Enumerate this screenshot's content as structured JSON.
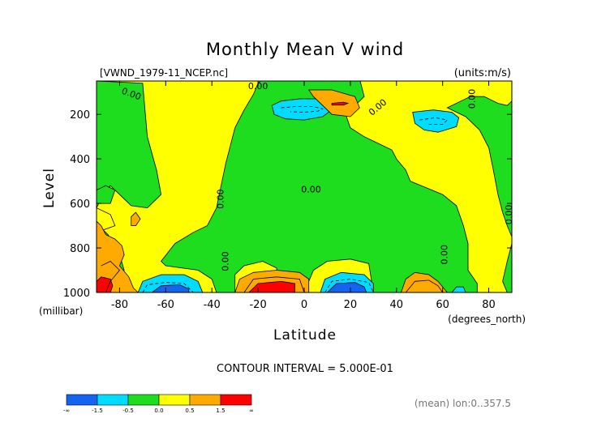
{
  "chart_data": {
    "type": "heatmap",
    "title": "Monthly Mean V wind",
    "file_label": "[VWND_1979-11_NCEP.nc]",
    "units_label": "(units:m/s)",
    "xlabel": "Latitude",
    "x_units": "(degrees_north)",
    "ylabel": "Level",
    "y_units": "(millibar)",
    "xlim": [
      -90,
      90
    ],
    "ylim": [
      1000,
      50
    ],
    "x_ticks": [
      -80,
      -60,
      -40,
      -20,
      0,
      20,
      40,
      60,
      80
    ],
    "y_ticks": [
      200,
      400,
      600,
      800,
      1000
    ],
    "grid": false,
    "contour_interval_text": "CONTOUR INTERVAL = 5.000E-01",
    "mean_text": "(mean) lon:0..357.5",
    "contour_labels": [
      {
        "text": "0.00",
        "x": -75,
        "y": 110,
        "rotate": 20
      },
      {
        "text": "0.00",
        "x": -20,
        "y": 75,
        "rotate": 0
      },
      {
        "text": "0.00",
        "x": 32,
        "y": 170,
        "rotate": -40
      },
      {
        "text": "0.00",
        "x": 73,
        "y": 130,
        "rotate": -90
      },
      {
        "text": "0.00",
        "x": -36,
        "y": 580,
        "rotate": -90
      },
      {
        "text": "0.00",
        "x": 3,
        "y": 540,
        "rotate": 0
      },
      {
        "text": "0.00",
        "x": -34,
        "y": 860,
        "rotate": -90
      },
      {
        "text": "0.00",
        "x": 61,
        "y": 830,
        "rotate": -90
      },
      {
        "text": "0.00",
        "x": 89,
        "y": 650,
        "rotate": -90
      }
    ],
    "colorbar": {
      "colors": [
        "#1464f0",
        "#00dcff",
        "#1edc1e",
        "#ffff00",
        "#ffaa00",
        "#ff0000"
      ],
      "ticks": [
        "-∞",
        "-1.5",
        "-0.5",
        "0.0",
        "0.5",
        "1.5",
        "∞"
      ]
    },
    "regions": [
      {
        "level": "pos",
        "color": "#ffff00",
        "polygon": [
          [
            -90,
            50
          ],
          [
            90,
            50
          ],
          [
            90,
            1000
          ],
          [
            -90,
            1000
          ]
        ]
      },
      {
        "level": "neg",
        "color": "#1edc1e",
        "polygon": [
          [
            -90,
            50
          ],
          [
            -70,
            60
          ],
          [
            -68,
            300
          ],
          [
            -64,
            450
          ],
          [
            -62,
            560
          ],
          [
            -68,
            620
          ],
          [
            -75,
            610
          ],
          [
            -80,
            560
          ],
          [
            -84,
            520
          ],
          [
            -88,
            580
          ],
          [
            -90,
            620
          ]
        ]
      },
      {
        "level": "neg",
        "color": "#1edc1e",
        "polygon": [
          [
            -18,
            40
          ],
          [
            24,
            40
          ],
          [
            26,
            120
          ],
          [
            18,
            200
          ],
          [
            20,
            260
          ],
          [
            26,
            300
          ],
          [
            32,
            330
          ],
          [
            38,
            360
          ],
          [
            40,
            400
          ],
          [
            44,
            450
          ],
          [
            46,
            500
          ],
          [
            53,
            530
          ],
          [
            60,
            560
          ],
          [
            66,
            610
          ],
          [
            69,
            700
          ],
          [
            71,
            780
          ],
          [
            71,
            900
          ],
          [
            75,
            960
          ],
          [
            75,
            1000
          ],
          [
            60,
            1000
          ],
          [
            50,
            960
          ],
          [
            44,
            980
          ],
          [
            42,
            1000
          ],
          [
            30,
            1000
          ],
          [
            28,
            870
          ],
          [
            20,
            850
          ],
          [
            10,
            860
          ],
          [
            4,
            900
          ],
          [
            0,
            1000
          ],
          [
            -10,
            1000
          ],
          [
            -12,
            890
          ],
          [
            -18,
            860
          ],
          [
            -26,
            880
          ],
          [
            -30,
            920
          ],
          [
            -30,
            1000
          ],
          [
            -38,
            1000
          ],
          [
            -40,
            940
          ],
          [
            -46,
            900
          ],
          [
            -60,
            880
          ],
          [
            -62,
            860
          ],
          [
            -56,
            780
          ],
          [
            -48,
            730
          ],
          [
            -42,
            700
          ],
          [
            -38,
            620
          ],
          [
            -36,
            520
          ],
          [
            -34,
            420
          ],
          [
            -32,
            340
          ],
          [
            -30,
            260
          ],
          [
            -26,
            180
          ],
          [
            -22,
            110
          ],
          [
            -20,
            60
          ]
        ]
      },
      {
        "level": "neg",
        "color": "#1edc1e",
        "polygon": [
          [
            -90,
            740
          ],
          [
            -87,
            720
          ],
          [
            -85,
            740
          ],
          [
            -83,
            780
          ],
          [
            -80,
            830
          ],
          [
            -78,
            900
          ],
          [
            -82,
            950
          ],
          [
            -88,
            960
          ],
          [
            -90,
            940
          ]
        ]
      },
      {
        "level": "neg",
        "color": "#1edc1e",
        "polygon": [
          [
            62,
            170
          ],
          [
            70,
            210
          ],
          [
            76,
            270
          ],
          [
            80,
            350
          ],
          [
            82,
            450
          ],
          [
            84,
            560
          ],
          [
            86,
            640
          ],
          [
            88,
            700
          ],
          [
            90,
            750
          ],
          [
            90,
            140
          ],
          [
            88,
            160
          ],
          [
            84,
            150
          ],
          [
            78,
            120
          ],
          [
            72,
            120
          ],
          [
            68,
            140
          ]
        ]
      },
      {
        "level": "neg",
        "color": "#1edc1e",
        "polygon": [
          [
            90,
            780
          ],
          [
            88,
            860
          ],
          [
            86,
            950
          ],
          [
            88,
            1000
          ],
          [
            90,
            1000
          ]
        ]
      },
      {
        "level": "neg",
        "color": "#1edc1e",
        "polygon": [
          [
            -90,
            540
          ],
          [
            -86,
            520
          ],
          [
            -82,
            540
          ],
          [
            -84,
            600
          ],
          [
            -90,
            600
          ]
        ]
      },
      {
        "level": "neg",
        "color": "#00dcff",
        "polygon": [
          [
            -14,
            160
          ],
          [
            -10,
            140
          ],
          [
            -2,
            130
          ],
          [
            6,
            130
          ],
          [
            10,
            150
          ],
          [
            12,
            180
          ],
          [
            8,
            210
          ],
          [
            0,
            225
          ],
          [
            -8,
            220
          ],
          [
            -13,
            200
          ]
        ]
      },
      {
        "level": "neg",
        "color": "#00dcff",
        "polygon": [
          [
            47,
            190
          ],
          [
            56,
            180
          ],
          [
            64,
            190
          ],
          [
            67,
            215
          ],
          [
            66,
            255
          ],
          [
            58,
            280
          ],
          [
            52,
            270
          ],
          [
            48,
            240
          ]
        ]
      },
      {
        "level": "pos",
        "color": "#ffff00",
        "polygon": [
          [
            -90,
            620
          ],
          [
            -84,
            650
          ],
          [
            -82,
            700
          ],
          [
            -90,
            730
          ]
        ]
      },
      {
        "level": "pos",
        "color": "#ffaa00",
        "polygon": [
          [
            -90,
            680
          ],
          [
            -88,
            700
          ],
          [
            -86,
            740
          ],
          [
            -82,
            760
          ],
          [
            -79,
            790
          ],
          [
            -78,
            830
          ],
          [
            -80,
            880
          ],
          [
            -76,
            930
          ],
          [
            -74,
            980
          ],
          [
            -72,
            1000
          ],
          [
            -90,
            1000
          ]
        ]
      },
      {
        "level": "pos",
        "color": "#ffaa00",
        "polygon": [
          [
            -75,
            660
          ],
          [
            -73,
            640
          ],
          [
            -71,
            670
          ],
          [
            -73,
            700
          ],
          [
            -75,
            700
          ]
        ]
      },
      {
        "level": "pos",
        "color": "#ffaa00",
        "polygon": [
          [
            -30,
            1000
          ],
          [
            -28,
            940
          ],
          [
            -22,
            910
          ],
          [
            -12,
            900
          ],
          [
            -2,
            910
          ],
          [
            2,
            940
          ],
          [
            2,
            1000
          ]
        ]
      },
      {
        "level": "pos",
        "color": "#ffaa00",
        "polygon": [
          [
            2,
            90
          ],
          [
            12,
            90
          ],
          [
            22,
            120
          ],
          [
            24,
            170
          ],
          [
            20,
            210
          ],
          [
            12,
            200
          ],
          [
            8,
            160
          ],
          [
            4,
            120
          ]
        ]
      },
      {
        "level": "pos",
        "color": "#ffaa00",
        "polygon": [
          [
            42,
            1000
          ],
          [
            44,
            940
          ],
          [
            48,
            910
          ],
          [
            54,
            920
          ],
          [
            58,
            950
          ],
          [
            62,
            1000
          ]
        ]
      },
      {
        "level": "pos",
        "color": "#ff0000",
        "polygon": [
          [
            -88,
            930
          ],
          [
            -84,
            940
          ],
          [
            -83,
            970
          ],
          [
            -84,
            1000
          ],
          [
            -90,
            1000
          ],
          [
            -90,
            950
          ]
        ]
      },
      {
        "level": "pos",
        "color": "#ff0000",
        "polygon": [
          [
            -24,
            1000
          ],
          [
            -20,
            960
          ],
          [
            -10,
            950
          ],
          [
            -4,
            960
          ],
          [
            -4,
            1000
          ]
        ]
      },
      {
        "level": "pos",
        "color": "#ff0000",
        "polygon": [
          [
            12,
            150
          ],
          [
            17,
            145
          ],
          [
            19,
            150
          ],
          [
            17,
            158
          ],
          [
            12,
            158
          ]
        ]
      },
      {
        "level": "neg",
        "color": "#00dcff",
        "polygon": [
          [
            -72,
            1000
          ],
          [
            -70,
            950
          ],
          [
            -62,
            920
          ],
          [
            -52,
            920
          ],
          [
            -46,
            950
          ],
          [
            -44,
            1000
          ]
        ]
      },
      {
        "level": "neg",
        "color": "#1464f0",
        "polygon": [
          [
            -66,
            1000
          ],
          [
            -62,
            970
          ],
          [
            -54,
            965
          ],
          [
            -50,
            985
          ],
          [
            -50,
            1000
          ]
        ]
      },
      {
        "level": "neg",
        "color": "#00dcff",
        "polygon": [
          [
            7,
            1000
          ],
          [
            9,
            940
          ],
          [
            16,
            910
          ],
          [
            26,
            920
          ],
          [
            30,
            960
          ],
          [
            30,
            1000
          ]
        ]
      },
      {
        "level": "neg",
        "color": "#1464f0",
        "polygon": [
          [
            10,
            1000
          ],
          [
            14,
            960
          ],
          [
            22,
            955
          ],
          [
            26,
            975
          ],
          [
            27,
            1000
          ]
        ]
      },
      {
        "level": "neg",
        "color": "#00dcff",
        "polygon": [
          [
            64,
            1000
          ],
          [
            66,
            975
          ],
          [
            69,
            975
          ],
          [
            70,
            1000
          ]
        ]
      }
    ],
    "dashed_contours": [
      [
        [
          -10,
          170
        ],
        [
          -4,
          165
        ],
        [
          4,
          165
        ],
        [
          8,
          175
        ],
        [
          6,
          185
        ],
        [
          0,
          190
        ],
        [
          -6,
          188
        ]
      ],
      [
        [
          50,
          225
        ],
        [
          57,
          215
        ],
        [
          62,
          225
        ],
        [
          60,
          245
        ],
        [
          54,
          245
        ]
      ],
      [
        [
          -70,
          1000
        ],
        [
          -68,
          965
        ],
        [
          -60,
          955
        ],
        [
          -52,
          960
        ],
        [
          -48,
          1000
        ]
      ],
      [
        [
          9,
          1000
        ],
        [
          12,
          950
        ],
        [
          20,
          940
        ],
        [
          28,
          955
        ],
        [
          30,
          1000
        ]
      ]
    ],
    "solid_contours": [
      [
        [
          -26,
          1000
        ],
        [
          -22,
          940
        ],
        [
          -12,
          930
        ],
        [
          -2,
          940
        ],
        [
          0,
          1000
        ]
      ],
      [
        [
          44,
          1000
        ],
        [
          48,
          950
        ],
        [
          54,
          945
        ],
        [
          58,
          970
        ],
        [
          60,
          1000
        ]
      ],
      [
        [
          -86,
          1000
        ],
        [
          -84,
          950
        ],
        [
          -80,
          900
        ],
        [
          -84,
          860
        ],
        [
          -88,
          880
        ]
      ]
    ]
  }
}
